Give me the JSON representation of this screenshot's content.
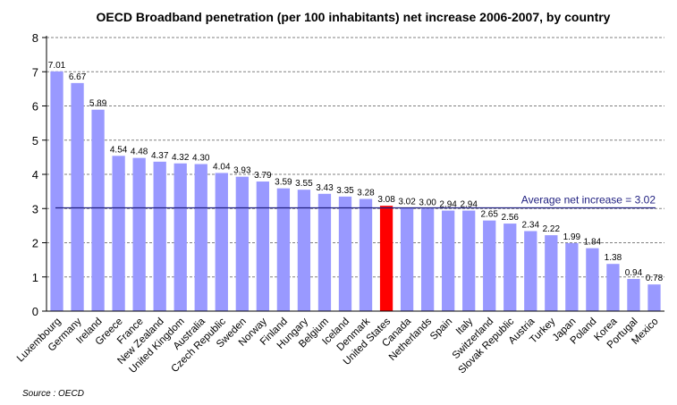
{
  "chart_data": {
    "type": "bar",
    "title": "OECD Broadband penetration (per 100 inhabitants) net increase 2006-2007, by country",
    "xlabel": "",
    "ylabel": "",
    "ylim": [
      0,
      8
    ],
    "yticks": [
      "0",
      "1",
      "2",
      "3",
      "4",
      "5",
      "6",
      "7",
      "8"
    ],
    "grid": true,
    "categories": [
      "Luxembourg",
      "Germany",
      "Ireland",
      "Greece",
      "France",
      "New Zealand",
      "United Kingdom",
      "Australia",
      "Czech Republic",
      "Sweden",
      "Norway",
      "Finland",
      "Hungary",
      "Belgium",
      "Iceland",
      "Denmark",
      "United States",
      "Canada",
      "Netherlands",
      "Spain",
      "Italy",
      "Switzerland",
      "Slovak Republic",
      "Austria",
      "Turkey",
      "Japan",
      "Poland",
      "Korea",
      "Portugal",
      "Mexico"
    ],
    "values": [
      7.01,
      6.67,
      5.89,
      4.54,
      4.48,
      4.37,
      4.32,
      4.3,
      4.04,
      3.93,
      3.79,
      3.59,
      3.55,
      3.43,
      3.35,
      3.28,
      3.08,
      3.02,
      3.0,
      2.94,
      2.94,
      2.65,
      2.56,
      2.34,
      2.22,
      1.99,
      1.84,
      1.38,
      0.94,
      0.78
    ],
    "value_labels": [
      "7.01",
      "6.67",
      "5.89",
      "4.54",
      "4.48",
      "4.37",
      "4.32",
      "4.30",
      "4.04",
      "3.93",
      "3.79",
      "3.59",
      "3.55",
      "3.43",
      "3.35",
      "3.28",
      "3.08",
      "3.02",
      "3.00",
      "2.94",
      "2.94",
      "2.65",
      "2.56",
      "2.34",
      "2.22",
      "1.99",
      "1.84",
      "1.38",
      "0.94",
      "0.78"
    ],
    "highlight_category": "United States",
    "average": {
      "value": 3.02,
      "label": "Average net increase = 3.02"
    },
    "source": "Source : OECD"
  },
  "colors": {
    "bar": "#9999ff",
    "highlight": "#ff0000",
    "average_line": "#1f1f80",
    "grid": "#808080"
  }
}
